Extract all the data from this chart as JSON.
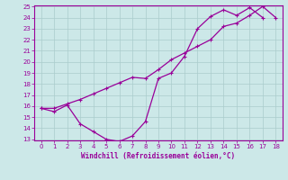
{
  "x_dip": [
    0,
    1,
    2,
    3,
    4,
    5,
    6,
    7,
    8,
    9,
    10,
    11,
    12,
    13,
    14,
    15,
    16,
    17
  ],
  "y_dip": [
    15.8,
    15.5,
    16.1,
    14.4,
    13.7,
    13.0,
    12.8,
    13.3,
    14.6,
    18.5,
    19.0,
    20.5,
    23.0,
    24.1,
    24.7,
    24.2,
    24.9,
    24.0
  ],
  "x_lin": [
    0,
    1,
    2,
    3,
    4,
    5,
    6,
    7,
    8,
    9,
    10,
    11,
    12,
    13,
    14,
    15,
    16,
    17,
    18
  ],
  "y_lin": [
    15.8,
    15.8,
    16.2,
    16.6,
    17.1,
    17.6,
    18.1,
    18.6,
    18.5,
    19.3,
    20.2,
    20.8,
    21.4,
    22.0,
    23.2,
    23.5,
    24.2,
    25.0,
    24.0
  ],
  "line_color": "#990099",
  "bg_color": "#cce8e8",
  "grid_color": "#aacccc",
  "xlabel": "Windchill (Refroidissement éolien,°C)",
  "ylim": [
    13,
    25
  ],
  "xlim": [
    -0.5,
    18.5
  ],
  "yticks": [
    13,
    14,
    15,
    16,
    17,
    18,
    19,
    20,
    21,
    22,
    23,
    24,
    25
  ],
  "xticks": [
    0,
    1,
    2,
    3,
    4,
    5,
    6,
    7,
    8,
    9,
    10,
    11,
    12,
    13,
    14,
    15,
    16,
    17,
    18
  ],
  "marker_size": 2.5,
  "linewidth": 0.9
}
